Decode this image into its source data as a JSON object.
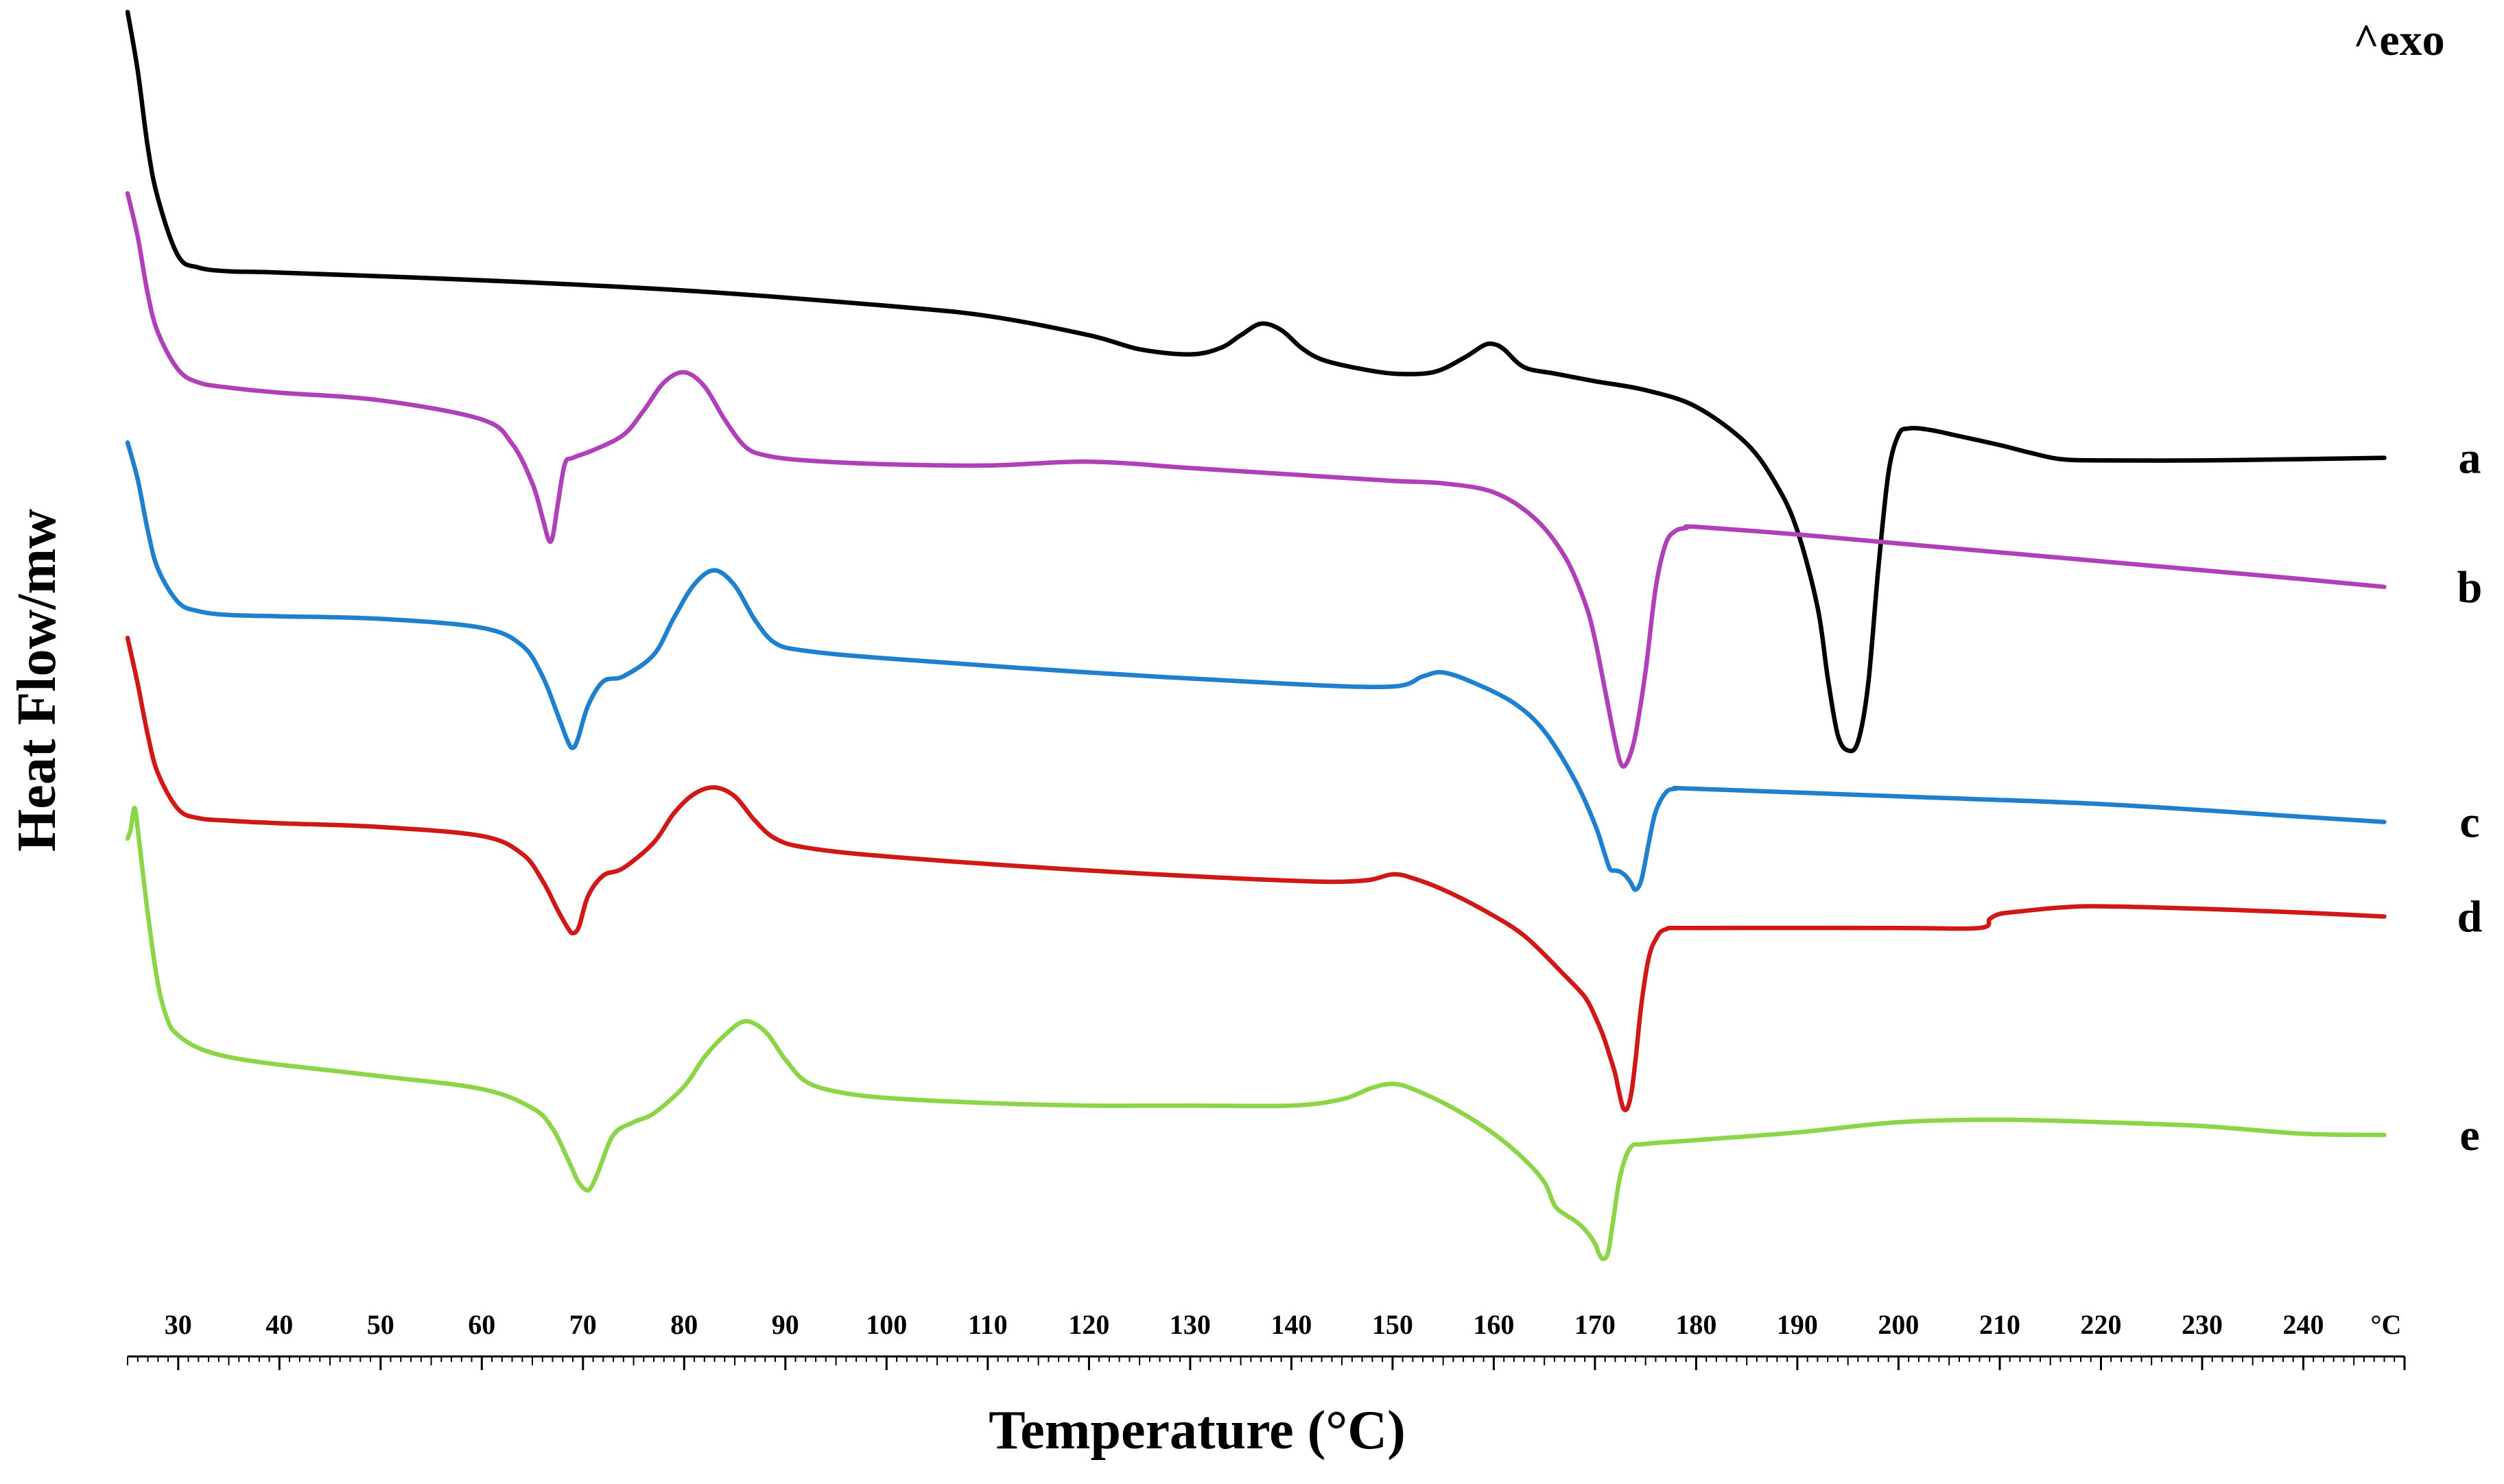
{
  "chart_data": {
    "type": "line",
    "title": "",
    "xlabel": "Temperature (°C)",
    "ylabel": "Heat Flow/mw",
    "exo_label": "^exo",
    "unit_label": "°C",
    "xlim": [
      25,
      250
    ],
    "ylim": [
      0,
      100
    ],
    "grid": false,
    "legend": "labels at right end of each curve",
    "x_ticks": [
      30,
      40,
      50,
      60,
      70,
      80,
      90,
      100,
      110,
      120,
      130,
      140,
      150,
      160,
      170,
      180,
      190,
      200,
      210,
      220,
      230,
      240
    ],
    "x_tick_labels": [
      "30",
      "40",
      "50",
      "60",
      "70",
      "80",
      "90",
      "100",
      "110",
      "120",
      "130",
      "140",
      "150",
      "160",
      "170",
      "180",
      "190",
      "200",
      "210",
      "220",
      "230",
      "240"
    ],
    "series": [
      {
        "name": "a",
        "color": "#000000",
        "x": [
          25,
          26,
          27,
          28,
          30,
          32,
          35,
          40,
          60,
          80,
          100,
          110,
          120,
          125,
          130,
          133,
          135,
          137,
          139,
          141,
          143,
          146,
          150,
          154,
          157,
          159,
          160,
          161,
          163,
          166,
          170,
          175,
          180,
          185,
          188,
          190,
          192,
          193,
          194,
          195,
          196,
          197,
          198,
          199,
          200,
          201,
          203,
          206,
          210,
          213,
          216,
          220,
          230,
          240,
          248
        ],
        "y": [
          99.6,
          95,
          89,
          85,
          80.5,
          79.6,
          79.3,
          79.2,
          78.6,
          77.8,
          76.6,
          75.8,
          74.3,
          73.2,
          72.8,
          73.3,
          74.3,
          75.2,
          74.7,
          73.3,
          72.4,
          71.8,
          71.3,
          71.4,
          72.5,
          73.5,
          73.6,
          73.2,
          71.8,
          71.3,
          70.7,
          70,
          68.7,
          65.8,
          62.5,
          59,
          53,
          47.5,
          43,
          41.8,
          42.5,
          47,
          56,
          63.5,
          66.5,
          67,
          66.9,
          66.4,
          65.7,
          65.1,
          64.6,
          64.5,
          64.5,
          64.6,
          64.7
        ]
      },
      {
        "name": "b",
        "color": "#b040b8",
        "x": [
          25,
          26,
          27,
          28,
          30,
          32,
          35,
          40,
          50,
          60,
          63,
          65,
          66,
          66.6,
          67,
          67.5,
          68.2,
          69,
          71,
          74,
          76,
          78,
          80,
          82,
          84,
          86,
          88,
          92,
          100,
          110,
          120,
          130,
          140,
          150,
          155,
          160,
          164,
          167,
          169,
          170,
          171,
          172,
          172.6,
          173.2,
          174,
          175,
          176,
          177,
          178,
          179,
          180,
          190,
          200,
          220,
          240,
          248
        ],
        "y": [
          85.4,
          82,
          77.5,
          74.5,
          71.6,
          70.6,
          70.2,
          69.8,
          69.2,
          67.7,
          65.8,
          62.7,
          60,
          58.3,
          58.5,
          61,
          64.2,
          64.7,
          65.3,
          66.5,
          68.4,
          70.6,
          71.4,
          70.3,
          67.7,
          65.6,
          64.9,
          64.5,
          64.2,
          64.1,
          64.4,
          63.9,
          63.4,
          62.9,
          62.7,
          62,
          60,
          57,
          53.4,
          50.5,
          46.5,
          42.5,
          40.7,
          40.9,
          43,
          48,
          54.5,
          58,
          59,
          59.2,
          59.3,
          58.7,
          58,
          56.6,
          55.2,
          54.6
        ]
      },
      {
        "name": "c",
        "color": "#2080d0",
        "x": [
          25,
          26,
          27,
          28,
          30,
          32,
          35,
          40,
          50,
          60,
          64,
          66,
          67.5,
          68.5,
          69,
          69.5,
          70.5,
          72,
          74,
          77,
          79,
          81,
          83,
          85,
          87,
          89,
          92,
          100,
          120,
          140,
          150,
          153,
          155,
          158,
          162,
          165,
          168,
          170,
          171,
          171.5,
          172,
          172.5,
          173,
          173.5,
          174,
          174.6,
          175.3,
          176,
          177,
          178,
          180,
          200,
          220,
          240,
          248
        ],
        "y": [
          65.9,
          63,
          59,
          56,
          53.4,
          52.7,
          52.4,
          52.3,
          52.1,
          51.4,
          50,
          47.6,
          44.6,
          42.5,
          42,
          42.7,
          45.3,
          47.2,
          47.6,
          49.3,
          52.2,
          54.8,
          55.9,
          54.7,
          52,
          50.2,
          49.6,
          49,
          47.9,
          47,
          46.8,
          47.6,
          47.9,
          47.1,
          45.5,
          43.3,
          39.5,
          36,
          33.6,
          32.5,
          32.4,
          32.3,
          32,
          31.5,
          30.9,
          31.7,
          34.5,
          37,
          38.5,
          38.8,
          38.8,
          38.2,
          37.6,
          36.6,
          36.2
        ]
      },
      {
        "name": "d",
        "color": "#d01818",
        "x": [
          25,
          26,
          27,
          28,
          30,
          32,
          35,
          40,
          50,
          60,
          64,
          66,
          67.5,
          68.5,
          69,
          69.6,
          70.5,
          72,
          74,
          77,
          79,
          81,
          83,
          85,
          87,
          89,
          92,
          100,
          120,
          140,
          147,
          150,
          152,
          155,
          159,
          163,
          167,
          169,
          170,
          170.8,
          171.5,
          172,
          172.4,
          172.8,
          173.2,
          173.6,
          174,
          174.6,
          175.3,
          176,
          177,
          180,
          200,
          208,
          209,
          210,
          212,
          216,
          220,
          230,
          240,
          248
        ],
        "y": [
          50.6,
          47,
          43,
          40,
          37.2,
          36.5,
          36.3,
          36.1,
          35.8,
          35.1,
          33.7,
          31.6,
          29.3,
          27.9,
          27.5,
          28,
          30.4,
          32,
          32.6,
          34.6,
          36.9,
          38.4,
          38.9,
          38.2,
          36.3,
          34.9,
          34.2,
          33.5,
          32.4,
          31.6,
          31.6,
          32.1,
          31.8,
          30.9,
          29.3,
          27.3,
          24.2,
          22.5,
          21,
          19.5,
          17.8,
          16.5,
          15,
          13.8,
          13.8,
          15,
          17.5,
          22,
          25.5,
          27,
          27.8,
          27.9,
          27.9,
          27.9,
          28.6,
          29,
          29.2,
          29.5,
          29.6,
          29.4,
          29.1,
          28.8
        ]
      },
      {
        "name": "e",
        "color": "#8cd448",
        "x": [
          25,
          25.3,
          25.7,
          26.1,
          27,
          28,
          29,
          30,
          32,
          35,
          40,
          50,
          60,
          65,
          67,
          68.5,
          69.5,
          70.3,
          70.8,
          71.5,
          73,
          75,
          77,
          80,
          82,
          84,
          86,
          88,
          90,
          92,
          95,
          100,
          110,
          120,
          130,
          140,
          145,
          148,
          150,
          152,
          156,
          160,
          163,
          165,
          166,
          167,
          168,
          169,
          170,
          170.4,
          170.8,
          171.3,
          171.8,
          172.5,
          173.5,
          175,
          180,
          190,
          200,
          210,
          220,
          230,
          240,
          248
        ],
        "y": [
          34.9,
          35.6,
          37.3,
          35,
          29,
          23.5,
          20.6,
          19.5,
          18.5,
          17.8,
          17.2,
          16.3,
          15.3,
          13.8,
          12.2,
          9.8,
          8.1,
          7.4,
          7.6,
          8.8,
          11.7,
          12.7,
          13.4,
          15.5,
          17.8,
          19.5,
          20.6,
          19.8,
          17.6,
          15.9,
          15.1,
          14.6,
          14.2,
          14,
          14,
          14,
          14.5,
          15.4,
          15.7,
          15.3,
          13.8,
          11.8,
          9.8,
          8,
          6.2,
          5.5,
          5,
          4.3,
          3.2,
          2.4,
          2,
          2.5,
          5,
          8.5,
          10.7,
          11,
          11.3,
          11.9,
          12.7,
          12.9,
          12.7,
          12.4,
          11.8,
          11.7
        ]
      }
    ]
  }
}
